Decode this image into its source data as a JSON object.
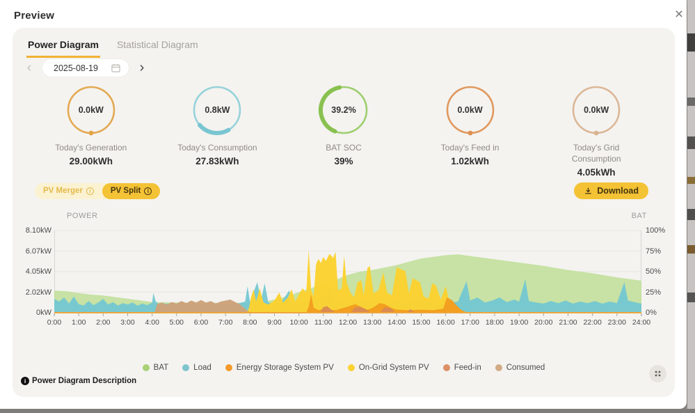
{
  "header": {
    "title": "Preview"
  },
  "icons": {
    "close": "×",
    "chevron_left": "‹",
    "chevron_right": "›",
    "info": "i"
  },
  "tabs": [
    {
      "label": "Power Diagram",
      "active": true
    },
    {
      "label": "Statistical Diagram",
      "active": false
    }
  ],
  "date_picker": {
    "value": "2025-08-19"
  },
  "gauges": [
    {
      "value": "0.0kW",
      "label": "Today's Generation",
      "total": "29.00kWh",
      "color": "#e2a344",
      "ring": {
        "dot": true
      }
    },
    {
      "value": "0.8kW",
      "label": "Today's Consumption",
      "total": "27.83kWh",
      "color": "#8ecfd8",
      "arc_color": "#79c6d1",
      "ring": {
        "arc_start_deg": 60,
        "arc_percent": 22
      }
    },
    {
      "value": "39.2%",
      "label": "BAT SOC",
      "total": "39%",
      "color": "#97cb64",
      "arc_color": "#89c150",
      "ring": {
        "arc_start_deg": 112,
        "arc_percent": 41
      }
    },
    {
      "value": "0.0kW",
      "label": "Today's Feed in",
      "total": "1.02kWh",
      "color": "#de9050",
      "ring": {
        "dot": true
      }
    },
    {
      "value": "0.0kW",
      "label": "Today's Grid Consumption",
      "total": "4.05kWh",
      "color": "#d9b28f",
      "ring": {
        "dot": true
      }
    }
  ],
  "controls": {
    "pv_merger": "PV Merger",
    "pv_split": "PV Split",
    "download": "Download"
  },
  "footer": {
    "description": "Power Diagram Description"
  },
  "accent": {
    "amber": "#f4c235",
    "tab_underline": "#f2b233",
    "axis_line": "#eda63a"
  },
  "chart_data": {
    "type": "area",
    "title": "",
    "grid": true,
    "legend_position": "bottom",
    "left_axis": {
      "title": "POWER",
      "tick_labels": [
        "8.10kW",
        "6.07kW",
        "4.05kW",
        "2.02kW",
        "0kW"
      ],
      "max": 8.1,
      "unit": "kW"
    },
    "right_axis": {
      "title": "BAT",
      "tick_labels": [
        "100%",
        "75%",
        "50%",
        "25%",
        "0%"
      ],
      "max": 100,
      "unit": "%"
    },
    "x_axis": {
      "min_hour": 0,
      "max_hour": 24,
      "tick_labels": [
        "0:00",
        "1:00",
        "2:00",
        "3:00",
        "4:00",
        "5:00",
        "6:00",
        "7:00",
        "8:00",
        "9:00",
        "10:00",
        "11:00",
        "12:00",
        "13:00",
        "14:00",
        "15:00",
        "16:00",
        "17:00",
        "18:00",
        "19:00",
        "20:00",
        "21:00",
        "22:00",
        "23:00",
        "24:00"
      ]
    },
    "series": [
      {
        "name": "BAT",
        "axis": "right",
        "color": "#bede96",
        "opacity": 0.85,
        "points": [
          [
            0,
            27
          ],
          [
            0.5,
            26
          ],
          [
            1,
            24
          ],
          [
            1.5,
            22
          ],
          [
            2,
            21
          ],
          [
            2.5,
            19
          ],
          [
            3,
            17
          ],
          [
            3.5,
            15
          ],
          [
            4,
            13
          ],
          [
            5,
            12.5
          ],
          [
            6,
            12
          ],
          [
            7,
            12
          ],
          [
            8,
            12
          ],
          [
            8.5,
            13
          ],
          [
            9,
            16
          ],
          [
            9.5,
            20
          ],
          [
            10,
            25
          ],
          [
            10.5,
            30
          ],
          [
            11,
            35
          ],
          [
            11.5,
            40
          ],
          [
            12,
            46
          ],
          [
            12.5,
            50
          ],
          [
            13,
            52
          ],
          [
            13.5,
            55
          ],
          [
            14,
            58
          ],
          [
            14.5,
            62
          ],
          [
            15,
            66
          ],
          [
            15.5,
            68
          ],
          [
            16,
            70
          ],
          [
            16.5,
            71
          ],
          [
            17,
            69
          ],
          [
            18,
            65
          ],
          [
            19,
            61
          ],
          [
            20,
            57
          ],
          [
            21,
            52
          ],
          [
            22,
            48
          ],
          [
            23,
            43
          ],
          [
            23.5,
            41
          ],
          [
            24,
            39
          ]
        ]
      },
      {
        "name": "Load",
        "axis": "left",
        "color": "#74c7d2",
        "opacity": 0.95,
        "points": [
          [
            0,
            1.35
          ],
          [
            0.2,
            1.1
          ],
          [
            0.4,
            1.5
          ],
          [
            0.6,
            0.9
          ],
          [
            0.8,
            1.6
          ],
          [
            1,
            0.85
          ],
          [
            1.2,
            0.7
          ],
          [
            1.4,
            1.15
          ],
          [
            1.6,
            0.75
          ],
          [
            1.8,
            1.0
          ],
          [
            2,
            1.35
          ],
          [
            2.2,
            0.8
          ],
          [
            2.4,
            1.05
          ],
          [
            2.6,
            0.7
          ],
          [
            2.8,
            0.95
          ],
          [
            3,
            0.8
          ],
          [
            3.2,
            1.0
          ],
          [
            3.4,
            0.7
          ],
          [
            3.6,
            0.9
          ],
          [
            3.8,
            0.75
          ],
          [
            4,
            1.0
          ],
          [
            4.05,
            1.95
          ],
          [
            4.15,
            1.1
          ],
          [
            4.3,
            0.8
          ],
          [
            4.6,
            0.9
          ],
          [
            5,
            0.85
          ],
          [
            5.5,
            0.9
          ],
          [
            6,
            0.85
          ],
          [
            6.5,
            0.9
          ],
          [
            7,
            0.85
          ],
          [
            7.5,
            0.9
          ],
          [
            7.8,
            1.1
          ],
          [
            7.9,
            2.6
          ],
          [
            8,
            1.1
          ],
          [
            8.3,
            3.0
          ],
          [
            8.45,
            1.2
          ],
          [
            8.6,
            2.9
          ],
          [
            8.75,
            1.0
          ],
          [
            9,
            0.9
          ],
          [
            9.3,
            1.1
          ],
          [
            9.6,
            2.2
          ],
          [
            9.75,
            1.0
          ],
          [
            10,
            1.1
          ],
          [
            10.5,
            1.2
          ],
          [
            11,
            1.4
          ],
          [
            11.3,
            2.4
          ],
          [
            11.45,
            1.1
          ],
          [
            12,
            1.0
          ],
          [
            12.5,
            1.2
          ],
          [
            13,
            1.05
          ],
          [
            13.5,
            1.0
          ],
          [
            14,
            1.1
          ],
          [
            14.5,
            1.0
          ],
          [
            15,
            1.2
          ],
          [
            15.5,
            1.0
          ],
          [
            16,
            0.95
          ],
          [
            16.5,
            1.1
          ],
          [
            16.85,
            3.1
          ],
          [
            17,
            1.2
          ],
          [
            17.3,
            1.5
          ],
          [
            17.6,
            1.0
          ],
          [
            17.9,
            1.2
          ],
          [
            18.2,
            1.5
          ],
          [
            18.5,
            1.05
          ],
          [
            18.8,
            1.3
          ],
          [
            19,
            1.1
          ],
          [
            19.25,
            3.3
          ],
          [
            19.4,
            1.15
          ],
          [
            19.7,
            1.0
          ],
          [
            20,
            0.9
          ],
          [
            20.3,
            1.15
          ],
          [
            20.6,
            0.95
          ],
          [
            20.9,
            1.2
          ],
          [
            21.2,
            0.9
          ],
          [
            21.5,
            1.1
          ],
          [
            21.8,
            0.95
          ],
          [
            22.1,
            1.15
          ],
          [
            22.4,
            0.9
          ],
          [
            22.7,
            1.1
          ],
          [
            23,
            0.95
          ],
          [
            23.3,
            3.0
          ],
          [
            23.45,
            1.2
          ],
          [
            23.7,
            1.05
          ],
          [
            24,
            0.9
          ]
        ]
      },
      {
        "name": "On-Grid System PV",
        "axis": "left",
        "color": "#fcd22f",
        "opacity": 0.97,
        "points": [
          [
            0,
            0
          ],
          [
            7.8,
            0
          ],
          [
            7.95,
            0.4
          ],
          [
            8.05,
            1.6
          ],
          [
            8.15,
            2.3
          ],
          [
            8.25,
            1.1
          ],
          [
            8.4,
            2.4
          ],
          [
            8.55,
            1.0
          ],
          [
            8.75,
            0.8
          ],
          [
            9,
            1.2
          ],
          [
            9.2,
            2.0
          ],
          [
            9.35,
            1.0
          ],
          [
            9.55,
            1.5
          ],
          [
            9.7,
            2.3
          ],
          [
            9.85,
            1.1
          ],
          [
            10,
            1.8
          ],
          [
            10.15,
            2.4
          ],
          [
            10.3,
            2.0
          ],
          [
            10.4,
            6.2
          ],
          [
            10.5,
            2.2
          ],
          [
            10.6,
            1.6
          ],
          [
            10.7,
            4.8
          ],
          [
            10.8,
            5.3
          ],
          [
            10.9,
            4.9
          ],
          [
            11,
            5.5
          ],
          [
            11.1,
            5.1
          ],
          [
            11.25,
            5.8
          ],
          [
            11.4,
            5.4
          ],
          [
            11.5,
            6.0
          ],
          [
            11.6,
            2.2
          ],
          [
            11.75,
            2.4
          ],
          [
            11.85,
            5.6
          ],
          [
            11.95,
            3.0
          ],
          [
            12.1,
            2.0
          ],
          [
            12.25,
            1.5
          ],
          [
            12.4,
            3.0
          ],
          [
            12.55,
            3.2
          ],
          [
            12.65,
            1.7
          ],
          [
            12.8,
            4.4
          ],
          [
            12.9,
            4.6
          ],
          [
            13.05,
            1.9
          ],
          [
            13.25,
            2.2
          ],
          [
            13.45,
            4.0
          ],
          [
            13.6,
            2.0
          ],
          [
            13.8,
            1.7
          ],
          [
            14,
            4.5
          ],
          [
            14.15,
            4.3
          ],
          [
            14.35,
            4.1
          ],
          [
            14.5,
            1.9
          ],
          [
            14.65,
            3.4
          ],
          [
            14.8,
            3.2
          ],
          [
            14.95,
            3.0
          ],
          [
            15.1,
            1.6
          ],
          [
            15.3,
            1.4
          ],
          [
            15.45,
            2.9
          ],
          [
            15.6,
            2.7
          ],
          [
            15.8,
            1.3
          ],
          [
            16,
            2.6
          ],
          [
            16.15,
            1.1
          ],
          [
            16.35,
            0.7
          ],
          [
            16.55,
            0.4
          ],
          [
            16.7,
            0.15
          ],
          [
            16.85,
            0
          ],
          [
            24,
            0
          ]
        ]
      },
      {
        "name": "Energy Storage System PV",
        "axis": "left",
        "color": "#f29c1f",
        "opacity": 0.95,
        "points": [
          [
            0,
            0
          ],
          [
            10.3,
            0
          ],
          [
            10.4,
            0.6
          ],
          [
            10.5,
            1.8
          ],
          [
            10.6,
            0.5
          ],
          [
            10.8,
            0.25
          ],
          [
            11,
            0.35
          ],
          [
            11.5,
            0.25
          ],
          [
            12,
            0.6
          ],
          [
            12.3,
            0.85
          ],
          [
            12.6,
            0.5
          ],
          [
            12.8,
            0.3
          ],
          [
            13,
            0.45
          ],
          [
            13.3,
            0.95
          ],
          [
            13.5,
            0.85
          ],
          [
            13.8,
            0.45
          ],
          [
            14,
            0.3
          ],
          [
            14.5,
            0.25
          ],
          [
            15,
            0.3
          ],
          [
            15.5,
            0.25
          ],
          [
            15.9,
            0.4
          ],
          [
            16.05,
            1.5
          ],
          [
            16.25,
            1.25
          ],
          [
            16.45,
            0.7
          ],
          [
            16.65,
            0.25
          ],
          [
            16.85,
            0.05
          ],
          [
            17.2,
            0
          ],
          [
            24,
            0
          ]
        ]
      },
      {
        "name": "Feed-in",
        "axis": "left",
        "color": "#d98a52",
        "opacity": 0.95,
        "points": [
          [
            0,
            0
          ],
          [
            10.85,
            0
          ],
          [
            11,
            0.55
          ],
          [
            11.15,
            0.65
          ],
          [
            11.35,
            0.25
          ],
          [
            11.5,
            0
          ],
          [
            12.1,
            0
          ],
          [
            12.3,
            0.55
          ],
          [
            12.5,
            0.6
          ],
          [
            12.75,
            0.3
          ],
          [
            12.95,
            0
          ],
          [
            13.3,
            0
          ],
          [
            13.5,
            0.55
          ],
          [
            13.75,
            0.45
          ],
          [
            13.95,
            0
          ],
          [
            14.4,
            0
          ],
          [
            14.55,
            0.35
          ],
          [
            14.75,
            0
          ],
          [
            24,
            0
          ]
        ]
      },
      {
        "name": "Consumed",
        "axis": "left",
        "color": "#cda27a",
        "opacity": 0.97,
        "points": [
          [
            0,
            0
          ],
          [
            4.1,
            0
          ],
          [
            4.2,
            0.85
          ],
          [
            4.4,
            1.0
          ],
          [
            4.6,
            0.8
          ],
          [
            4.8,
            1.05
          ],
          [
            5,
            0.9
          ],
          [
            5.2,
            1.15
          ],
          [
            5.4,
            0.95
          ],
          [
            5.6,
            1.2
          ],
          [
            5.8,
            1.0
          ],
          [
            6,
            1.25
          ],
          [
            6.2,
            1.0
          ],
          [
            6.4,
            1.15
          ],
          [
            6.6,
            0.9
          ],
          [
            6.8,
            1.1
          ],
          [
            7,
            1.2
          ],
          [
            7.2,
            1.3
          ],
          [
            7.4,
            1.05
          ],
          [
            7.6,
            0.8
          ],
          [
            7.8,
            0.4
          ],
          [
            7.95,
            0.1
          ],
          [
            8.05,
            0
          ],
          [
            24,
            0
          ]
        ]
      }
    ],
    "legend": [
      {
        "label": "BAT",
        "color": "#a9d177"
      },
      {
        "label": "Load",
        "color": "#7fc4cd"
      },
      {
        "label": "Energy Storage System PV",
        "color": "#f49a2a"
      },
      {
        "label": "On-Grid System PV",
        "color": "#fcd233"
      },
      {
        "label": "Feed-in",
        "color": "#dc9067"
      },
      {
        "label": "Consumed",
        "color": "#d2ab84"
      }
    ]
  }
}
